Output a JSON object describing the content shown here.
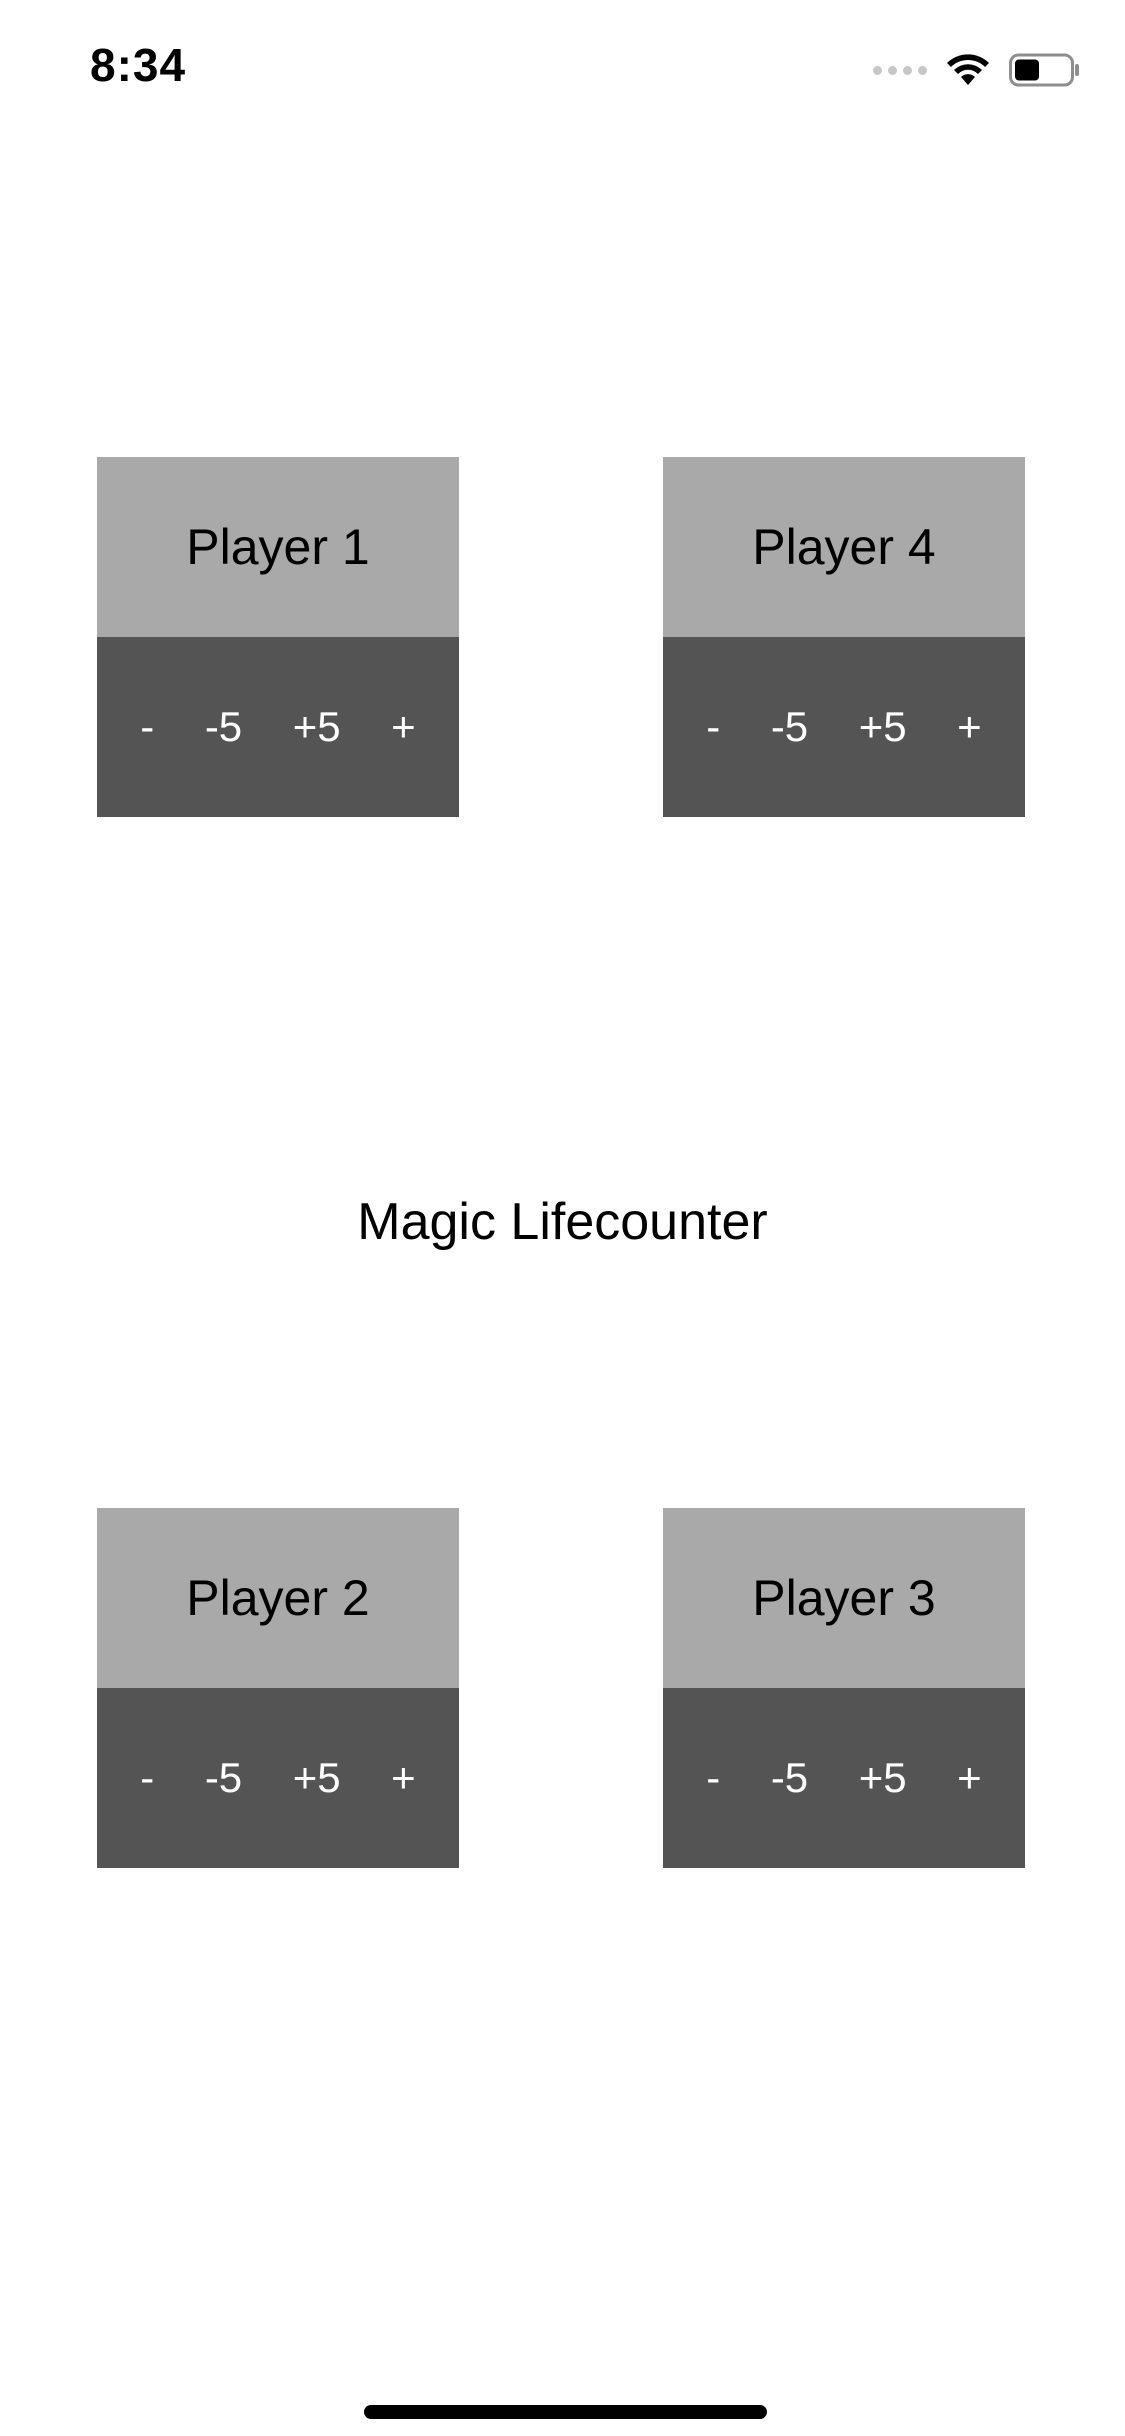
{
  "status_bar": {
    "time": "8:34",
    "signal_icon": "signal-dots-icon",
    "wifi_icon": "wifi-icon",
    "battery_icon": "battery-icon",
    "battery_level": 0.45
  },
  "app": {
    "title": "Magic Lifecounter"
  },
  "players": [
    {
      "name": "Player 1",
      "buttons": [
        "-",
        "-5",
        "+5",
        "+"
      ]
    },
    {
      "name": "Player 4",
      "buttons": [
        "-",
        "-5",
        "+5",
        "+"
      ]
    },
    {
      "name": "Player 2",
      "buttons": [
        "-",
        "-5",
        "+5",
        "+"
      ]
    },
    {
      "name": "Player 3",
      "buttons": [
        "-",
        "-5",
        "+5",
        "+"
      ]
    }
  ],
  "colors": {
    "name_area": "#a9a9a9",
    "controls_area": "#545454",
    "button_text": "#ffffff",
    "background": "#ffffff"
  }
}
